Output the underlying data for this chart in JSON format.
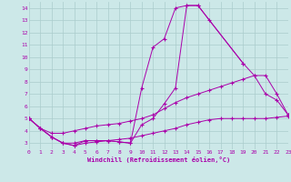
{
  "bg_color": "#cce8e8",
  "grid_color": "#aacccc",
  "line_color": "#aa00aa",
  "xlabel": "Windchill (Refroidissement éolien,°C)",
  "xlim": [
    0,
    23
  ],
  "ylim": [
    2.5,
    14.5
  ],
  "yticks": [
    3,
    4,
    5,
    6,
    7,
    8,
    9,
    10,
    11,
    12,
    13,
    14
  ],
  "xticks": [
    0,
    1,
    2,
    3,
    4,
    5,
    6,
    7,
    8,
    9,
    10,
    11,
    12,
    13,
    14,
    15,
    16,
    17,
    18,
    19,
    20,
    21,
    22,
    23
  ],
  "lines": [
    {
      "x": [
        0,
        1,
        2,
        3,
        4,
        5,
        6,
        7,
        8,
        9,
        10,
        11,
        12,
        13,
        14,
        15,
        16,
        19
      ],
      "y": [
        5,
        4.2,
        3.5,
        3.0,
        2.8,
        3.2,
        3.2,
        3.2,
        3.1,
        3.0,
        7.5,
        10.8,
        11.5,
        14.0,
        14.2,
        14.2,
        13.0,
        9.5
      ]
    },
    {
      "x": [
        0,
        1,
        2,
        3,
        4,
        5,
        6,
        7,
        8,
        9,
        10,
        11,
        12,
        13,
        14,
        15,
        19,
        20,
        21,
        22,
        23
      ],
      "y": [
        5,
        4.2,
        3.5,
        3.0,
        3.0,
        3.2,
        3.2,
        3.2,
        3.1,
        3.0,
        4.5,
        5.0,
        6.2,
        7.5,
        14.2,
        14.2,
        9.5,
        8.5,
        7.0,
        6.5,
        5.3
      ]
    },
    {
      "x": [
        0,
        1,
        2,
        3,
        4,
        5,
        6,
        7,
        8,
        9,
        10,
        11,
        12,
        13,
        14,
        15,
        16,
        17,
        18,
        19,
        20,
        21,
        22,
        23
      ],
      "y": [
        5,
        4.2,
        3.8,
        3.8,
        4.0,
        4.2,
        4.4,
        4.5,
        4.6,
        4.8,
        5.0,
        5.3,
        5.8,
        6.3,
        6.7,
        7.0,
        7.3,
        7.6,
        7.9,
        8.2,
        8.5,
        8.5,
        7.0,
        5.3
      ]
    },
    {
      "x": [
        0,
        1,
        2,
        3,
        4,
        5,
        6,
        7,
        8,
        9,
        10,
        11,
        12,
        13,
        14,
        15,
        16,
        17,
        18,
        19,
        20,
        21,
        22,
        23
      ],
      "y": [
        5,
        4.2,
        3.5,
        3.0,
        2.8,
        3.0,
        3.1,
        3.2,
        3.3,
        3.4,
        3.6,
        3.8,
        4.0,
        4.2,
        4.5,
        4.7,
        4.9,
        5.0,
        5.0,
        5.0,
        5.0,
        5.0,
        5.1,
        5.2
      ]
    }
  ]
}
